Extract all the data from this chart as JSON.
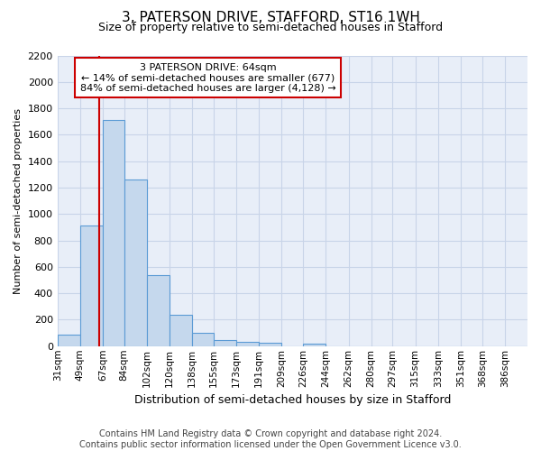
{
  "title": "3, PATERSON DRIVE, STAFFORD, ST16 1WH",
  "subtitle": "Size of property relative to semi-detached houses in Stafford",
  "xlabel": "Distribution of semi-detached houses by size in Stafford",
  "ylabel": "Number of semi-detached properties",
  "footer_line1": "Contains HM Land Registry data © Crown copyright and database right 2024.",
  "footer_line2": "Contains public sector information licensed under the Open Government Licence v3.0.",
  "annotation_title": "3 PATERSON DRIVE: 64sqm",
  "annotation_line1": "← 14% of semi-detached houses are smaller (677)",
  "annotation_line2": "84% of semi-detached houses are larger (4,128) →",
  "property_size": 64,
  "bar_labels": [
    "31sqm",
    "49sqm",
    "67sqm",
    "84sqm",
    "102sqm",
    "120sqm",
    "138sqm",
    "155sqm",
    "173sqm",
    "191sqm",
    "209sqm",
    "226sqm",
    "244sqm",
    "262sqm",
    "280sqm",
    "297sqm",
    "315sqm",
    "333sqm",
    "351sqm",
    "368sqm",
    "386sqm"
  ],
  "bar_values": [
    90,
    910,
    1710,
    1260,
    540,
    235,
    100,
    45,
    35,
    28,
    0,
    20,
    0,
    0,
    0,
    0,
    0,
    0,
    0,
    0,
    0
  ],
  "bin_edges": [
    31,
    49,
    67,
    84,
    102,
    120,
    138,
    155,
    173,
    191,
    209,
    226,
    244,
    262,
    280,
    297,
    315,
    333,
    351,
    368,
    386,
    404
  ],
  "bar_color": "#c5d8ed",
  "bar_edge_color": "#5b9bd5",
  "vline_color": "#cc0000",
  "vline_x": 64,
  "annotation_box_edge_color": "#cc0000",
  "annotation_box_face_color": "#ffffff",
  "grid_color": "#c8d4e8",
  "background_color": "#e8eef8",
  "ylim": [
    0,
    2200
  ],
  "yticks": [
    0,
    200,
    400,
    600,
    800,
    1000,
    1200,
    1400,
    1600,
    1800,
    2000,
    2200
  ],
  "title_fontsize": 11,
  "subtitle_fontsize": 9,
  "ylabel_fontsize": 8,
  "xlabel_fontsize": 9,
  "footer_fontsize": 7,
  "tick_fontsize": 8,
  "xtick_fontsize": 7.5
}
